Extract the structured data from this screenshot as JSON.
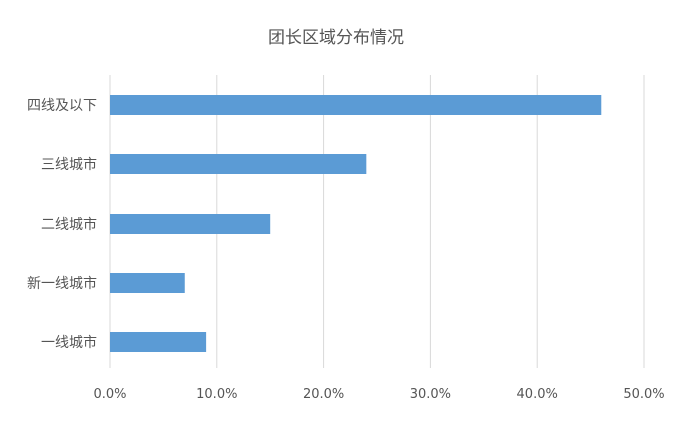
{
  "chart_data": {
    "type": "bar",
    "orientation": "horizontal",
    "title": "团长区域分布情况",
    "categories": [
      "四线及以下",
      "三线城市",
      "二线城市",
      "新一线城市",
      "一线城市"
    ],
    "values": [
      0.46,
      0.24,
      0.15,
      0.07,
      0.09
    ],
    "xlim": [
      0,
      0.5
    ],
    "xticks": [
      0,
      0.1,
      0.2,
      0.3,
      0.4,
      0.5
    ],
    "xtick_labels": [
      "0.0%",
      "10.0%",
      "20.0%",
      "30.0%",
      "40.0%",
      "50.0%"
    ],
    "grid": true,
    "legend": "none",
    "bar_color": "#5b9bd5",
    "grid_color": "#d9d9d9"
  }
}
